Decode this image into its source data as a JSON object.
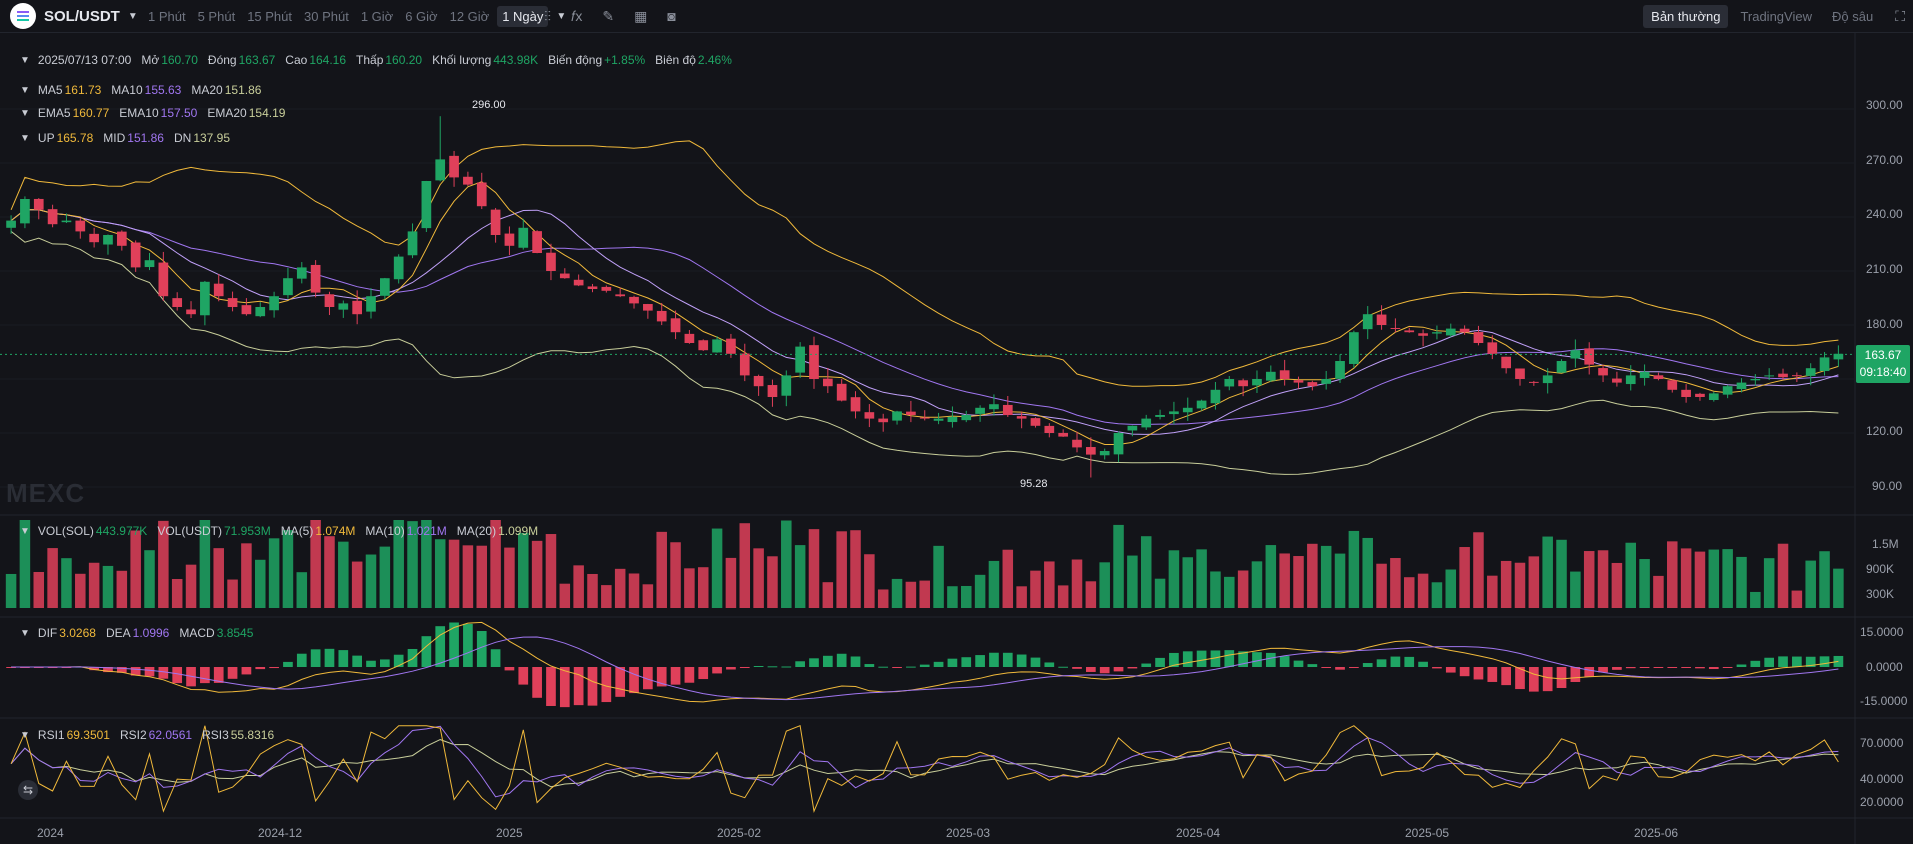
{
  "header": {
    "pair": "SOL/USDT",
    "intervals": [
      "1 Phút",
      "5 Phút",
      "15 Phút",
      "30 Phút",
      "1 Giờ",
      "6 Giờ",
      "12 Giờ",
      "1 Ngày"
    ],
    "active_interval": "1 Ngày",
    "tools": [
      "indicators-icon",
      "fx-icon",
      "pencil-icon",
      "layout-icon",
      "camera-icon"
    ],
    "views": [
      "Bản thường",
      "TradingView",
      "Độ sâu"
    ],
    "active_view": "Bản thường",
    "fullscreen_icon": "fullscreen-icon"
  },
  "ohlc": {
    "date": "2025/07/13 07:00",
    "open_label": "Mở",
    "open": "160.70",
    "close_label": "Đóng",
    "close": "163.67",
    "high_label": "Cao",
    "high": "164.16",
    "low_label": "Thấp",
    "low": "160.20",
    "volume_label": "Khối lượng",
    "volume": "443.98K",
    "change_label": "Biến động",
    "change": "+1.85%",
    "amplitude_label": "Biên độ",
    "amplitude": "2.46%"
  },
  "ma": {
    "ma5_label": "MA5",
    "ma5": "161.73",
    "ma10_label": "MA10",
    "ma10": "155.63",
    "ma20_label": "MA20",
    "ma20": "151.86"
  },
  "ema": {
    "ema5_label": "EMA5",
    "ema5": "160.77",
    "ema10_label": "EMA10",
    "ema10": "157.50",
    "ema20_label": "EMA20",
    "ema20": "154.19"
  },
  "boll": {
    "up_label": "UP",
    "up": "165.78",
    "mid_label": "MID",
    "mid": "151.86",
    "dn_label": "DN",
    "dn": "137.95"
  },
  "vol": {
    "sol_label": "VOL(SOL)",
    "sol": "443.977K",
    "usdt_label": "VOL(USDT)",
    "usdt": "71.953M",
    "ma5_label": "MA(5)",
    "ma5": "1.074M",
    "ma10_label": "MA(10)",
    "ma10": "1.021M",
    "ma20_label": "MA(20)",
    "ma20": "1.099M"
  },
  "macd": {
    "dif_label": "DIF",
    "dif": "3.0268",
    "dea_label": "DEA",
    "dea": "1.0996",
    "macd_label": "MACD",
    "macd": "3.8545"
  },
  "rsi": {
    "rsi1_label": "RSI1",
    "rsi1": "69.3501",
    "rsi2_label": "RSI2",
    "rsi2": "62.0561",
    "rsi3_label": "RSI3",
    "rsi3": "55.8316"
  },
  "price_axis": [
    "300.00",
    "270.00",
    "240.00",
    "210.00",
    "180.00",
    "120.00",
    "90.00"
  ],
  "vol_axis": [
    "1.5M",
    "900K",
    "300K"
  ],
  "macd_axis": [
    "15.0000",
    "0.0000",
    "-15.0000"
  ],
  "rsi_axis": [
    "70.0000",
    "40.0000",
    "20.0000"
  ],
  "time_axis": [
    "2024",
    "2024-12",
    "2025",
    "2025-02",
    "2025-03",
    "2025-04",
    "2025-05",
    "2025-06"
  ],
  "current_price": "163.67",
  "countdown": "09:18:40",
  "high_marker": "296.00",
  "low_marker": "95.28",
  "watermark": "MEXC",
  "colors": {
    "up": "#1fa564",
    "down": "#e0405a",
    "ma5": "#f0b93b",
    "ma10": "#a076f0",
    "ma20": "#c8ce9a",
    "background": "#131419"
  },
  "chart_data": {
    "type": "candlestick",
    "series_anchor_closes": [
      238,
      250,
      244,
      236,
      238,
      232,
      226,
      230,
      224,
      212,
      216,
      196,
      190,
      186,
      204,
      196,
      190,
      186,
      190,
      196,
      206,
      212,
      198,
      190,
      192,
      186,
      196,
      206,
      218,
      232,
      260,
      272,
      262,
      258,
      246,
      230,
      224,
      234,
      220,
      210,
      206,
      202,
      200,
      199,
      196,
      192,
      188,
      182,
      176,
      170,
      166,
      172,
      164,
      152,
      146,
      140,
      152,
      168,
      150,
      146,
      138,
      132,
      128,
      126,
      132,
      130,
      128,
      128,
      129,
      130,
      134,
      136,
      130,
      128,
      124,
      120,
      118,
      112,
      108,
      110,
      120,
      124,
      128,
      130,
      132,
      134,
      138,
      144,
      150,
      146,
      150,
      154,
      150,
      148,
      146,
      150,
      160,
      176,
      186,
      180,
      178,
      176,
      174,
      176,
      178,
      176,
      170,
      164,
      156,
      150,
      148,
      152,
      160,
      166,
      158,
      152,
      148,
      152,
      154,
      150,
      144,
      140,
      140,
      142,
      146,
      148,
      150,
      152,
      151,
      152,
      156,
      162,
      164
    ]
  }
}
